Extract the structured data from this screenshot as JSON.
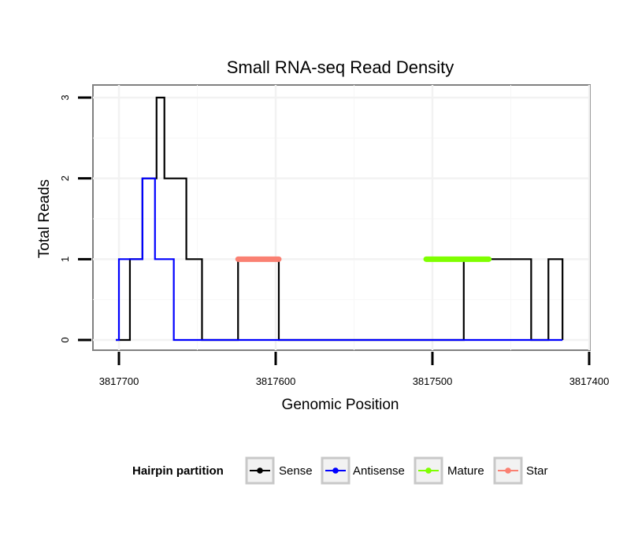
{
  "chart_data": {
    "type": "line",
    "title": "Small RNA-seq Read Density",
    "xlabel": "Genomic Position",
    "ylabel": "Total Reads",
    "x_reversed": true,
    "xlim": [
      3817700,
      3817400
    ],
    "ylim": [
      0,
      3
    ],
    "x_ticks": [
      3817700,
      3817600,
      3817500,
      3817400
    ],
    "x_tick_labels": [
      "3817700",
      "3817600",
      "3817500",
      "3817400"
    ],
    "y_ticks": [
      0,
      1,
      2,
      3
    ],
    "y_tick_labels": [
      "0",
      "1",
      "2",
      "3"
    ],
    "grid": true,
    "legend": {
      "title": "Hairpin partition",
      "position": "bottom",
      "entries": [
        {
          "label": "Sense",
          "color": "#000000"
        },
        {
          "label": "Antisense",
          "color": "#0000ff"
        },
        {
          "label": "Mature",
          "color": "#7fff00"
        },
        {
          "label": "Star",
          "color": "#fa8072"
        }
      ]
    },
    "series": [
      {
        "name": "Sense",
        "color": "#000000",
        "step": true,
        "x": [
          3817702,
          3817693,
          3817685,
          3817676,
          3817671,
          3817669,
          3817663,
          3817657,
          3817647,
          3817624,
          3817598,
          3817480,
          3817437,
          3817426,
          3817417
        ],
        "y": [
          0,
          1,
          2,
          3,
          2,
          2,
          2,
          1,
          0,
          1,
          0,
          1,
          0,
          1,
          0
        ]
      },
      {
        "name": "Antisense",
        "color": "#0000ff",
        "step": true,
        "x": [
          3817702,
          3817700,
          3817685,
          3817677,
          3817665,
          3817417
        ],
        "y": [
          0,
          1,
          2,
          1,
          0,
          0
        ]
      },
      {
        "name": "Star",
        "color": "#fa8072",
        "x": [
          3817624,
          3817598
        ],
        "y": [
          1,
          1
        ]
      },
      {
        "name": "Mature",
        "color": "#7fff00",
        "x": [
          3817504,
          3817464
        ],
        "y": [
          1,
          1
        ]
      }
    ]
  }
}
